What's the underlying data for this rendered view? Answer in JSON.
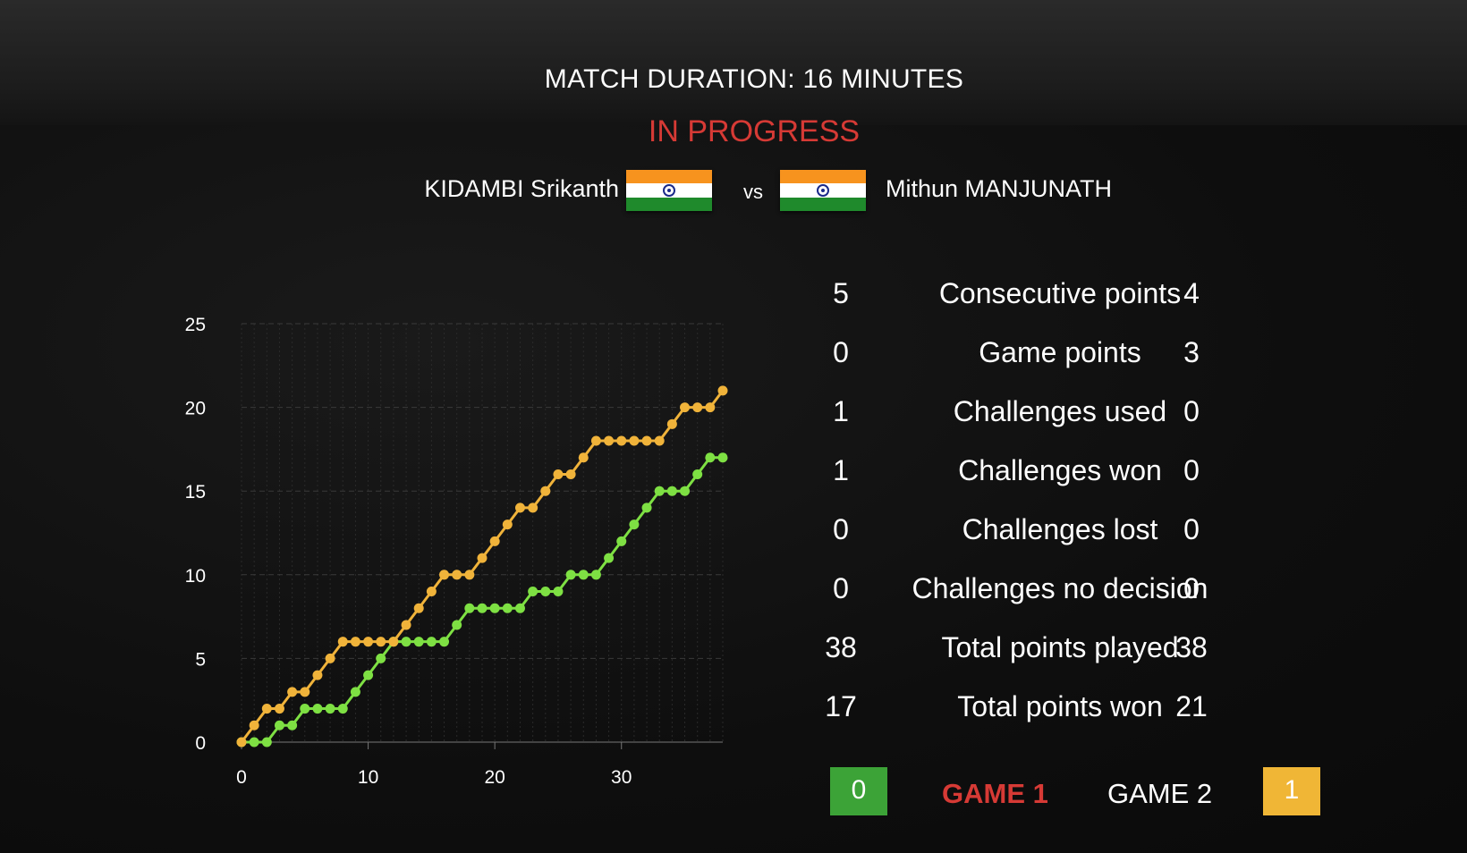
{
  "header": {
    "title": "MATCH DURATION: 16 MINUTES",
    "status": "IN PROGRESS"
  },
  "players": {
    "left": {
      "name": "KIDAMBI Srikanth",
      "flag": "india-flag"
    },
    "vs": "vs",
    "right": {
      "name": "Mithun MANJUNATH",
      "flag": "india-flag"
    }
  },
  "stats": [
    {
      "left": "5",
      "label": "Consecutive points",
      "right": "4"
    },
    {
      "left": "0",
      "label": "Game points",
      "right": "3"
    },
    {
      "left": "1",
      "label": "Challenges used",
      "right": "0"
    },
    {
      "left": "1",
      "label": "Challenges won",
      "right": "0"
    },
    {
      "left": "0",
      "label": "Challenges lost",
      "right": "0"
    },
    {
      "left": "0",
      "label": "Challenges no decision",
      "right": "0"
    },
    {
      "left": "38",
      "label": "Total points played",
      "right": "38"
    },
    {
      "left": "17",
      "label": "Total points won",
      "right": "21"
    }
  ],
  "games": {
    "left_score": "0",
    "game1_label": "GAME 1",
    "game2_label": "GAME 2",
    "right_score": "1"
  },
  "colors": {
    "accent_red": "#d63a35",
    "green_series": "#7ee043",
    "orange_series": "#f0b33a",
    "green_box": "#3ca337",
    "orange_box": "#f0b636"
  },
  "chart_data": {
    "type": "line",
    "x_ticks": [
      0,
      10,
      20,
      30
    ],
    "y_ticks": [
      0,
      5,
      10,
      15,
      20,
      25
    ],
    "xlim": [
      0,
      38
    ],
    "ylim": [
      0,
      25
    ],
    "grid": true,
    "series": [
      {
        "color": "#f0b33a",
        "x": [
          0,
          1,
          2,
          3,
          4,
          5,
          6,
          7,
          8,
          9,
          10,
          11,
          12,
          13,
          14,
          15,
          16,
          17,
          18,
          19,
          20,
          21,
          22,
          23,
          24,
          25,
          26,
          27,
          28,
          29,
          30,
          31,
          32,
          33,
          34,
          35,
          36,
          37,
          38
        ],
        "values": [
          0,
          1,
          2,
          2,
          3,
          3,
          4,
          5,
          6,
          6,
          6,
          6,
          6,
          7,
          8,
          9,
          10,
          10,
          10,
          11,
          12,
          13,
          14,
          14,
          15,
          16,
          16,
          17,
          18,
          18,
          18,
          18,
          18,
          18,
          19,
          20,
          20,
          20,
          21
        ]
      },
      {
        "color": "#7ee043",
        "x": [
          0,
          1,
          2,
          3,
          4,
          5,
          6,
          7,
          8,
          9,
          10,
          11,
          12,
          13,
          14,
          15,
          16,
          17,
          18,
          19,
          20,
          21,
          22,
          23,
          24,
          25,
          26,
          27,
          28,
          29,
          30,
          31,
          32,
          33,
          34,
          35,
          36,
          37,
          38
        ],
        "values": [
          0,
          0,
          0,
          1,
          1,
          2,
          2,
          2,
          2,
          3,
          4,
          5,
          6,
          6,
          6,
          6,
          6,
          7,
          8,
          8,
          8,
          8,
          8,
          9,
          9,
          9,
          10,
          10,
          10,
          11,
          12,
          13,
          14,
          15,
          15,
          15,
          16,
          17,
          17
        ]
      }
    ]
  }
}
